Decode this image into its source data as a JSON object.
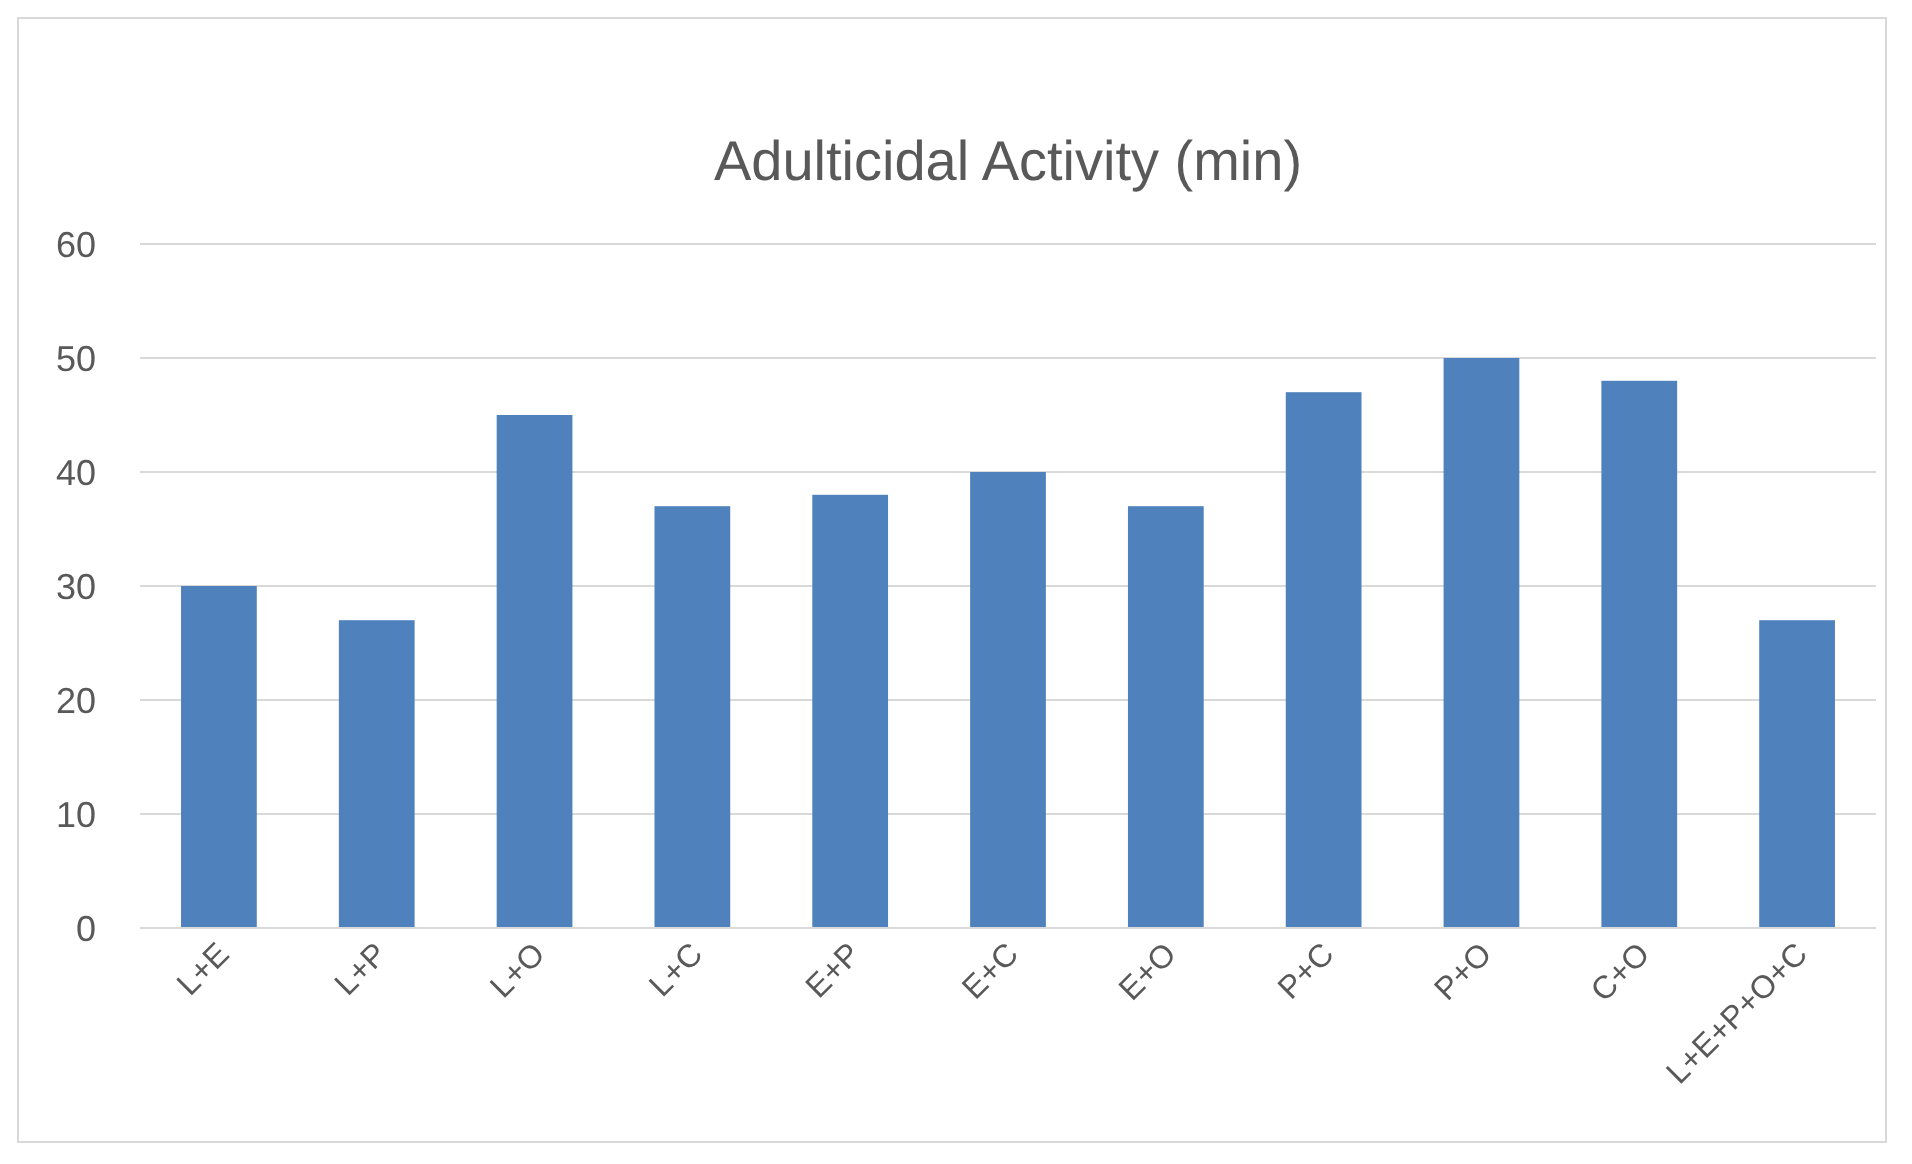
{
  "chart_data": {
    "type": "bar",
    "title": "Adulticidal Activity (min)",
    "categories": [
      "L+E",
      "L+P",
      "L+O",
      "L+C",
      "E+P",
      "E+C",
      "E+O",
      "P+C",
      "P+O",
      "C+O",
      "L+E+P+O+C"
    ],
    "values": [
      30,
      27,
      45,
      37,
      38,
      40,
      37,
      47,
      50,
      48,
      27
    ],
    "color": "#4f81bd",
    "ylim": [
      0,
      60
    ],
    "yticks": [
      0,
      10,
      20,
      30,
      40,
      50,
      60
    ],
    "grid": "y"
  }
}
